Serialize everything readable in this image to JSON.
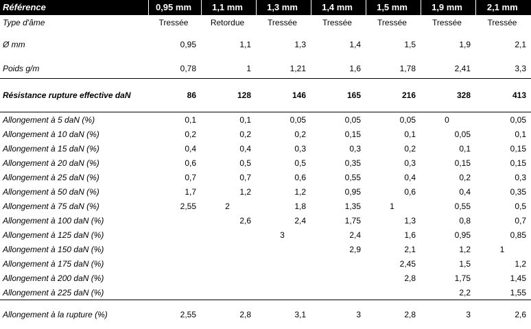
{
  "header": {
    "label": "Référence",
    "columns": [
      "0,95 mm",
      "1,1 mm",
      "1,3 mm",
      "1,4 mm",
      "1,5 mm",
      "1,9 mm",
      "2,1 mm"
    ]
  },
  "type_row": {
    "label": "Type d'âme",
    "values": [
      "Tressée",
      "Retordue",
      "Tressée",
      "Tressée",
      "Tressée",
      "Tressée",
      "Tressée"
    ]
  },
  "diameter_row": {
    "label": "Ø mm",
    "values": [
      "0,95",
      "1,1",
      "1,3",
      "1,4",
      "1,5",
      "1,9",
      "2,1"
    ]
  },
  "weight_row": {
    "label": "Poids g/m",
    "values": [
      "0,78",
      "1",
      "1,21",
      "1,6",
      "1,78",
      "2,41",
      "3,3"
    ]
  },
  "resistance_row": {
    "label": "Résistance rupture effective daN",
    "values": [
      "86",
      "128",
      "146",
      "165",
      "216",
      "328",
      "413"
    ]
  },
  "elongation_rows": [
    {
      "label": "Allongement à 5 daN (%)",
      "values": [
        "0,1",
        "0,1",
        "0,05",
        "0,05",
        "0,05",
        "0",
        "0,05"
      ]
    },
    {
      "label": "Allongement à 10 daN (%)",
      "values": [
        "0,2",
        "0,2",
        "0,2",
        "0,15",
        "0,1",
        "0,05",
        "0,1"
      ]
    },
    {
      "label": "Allongement à 15 daN (%)",
      "values": [
        "0,4",
        "0,4",
        "0,3",
        "0,3",
        "0,2",
        "0,1",
        "0,15"
      ]
    },
    {
      "label": "Allongement à 20 daN (%)",
      "values": [
        "0,6",
        "0,5",
        "0,5",
        "0,35",
        "0,3",
        "0,15",
        "0,15"
      ]
    },
    {
      "label": "Allongement à 25 daN (%)",
      "values": [
        "0,7",
        "0,7",
        "0,6",
        "0,55",
        "0,4",
        "0,2",
        "0,3"
      ]
    },
    {
      "label": "Allongement à 50 daN (%)",
      "values": [
        "1,7",
        "1,2",
        "1,2",
        "0,95",
        "0,6",
        "0,4",
        "0,35"
      ]
    },
    {
      "label": "Allongement à 75 daN (%)",
      "values": [
        "2,55",
        "2",
        "1,8",
        "1,35",
        "1",
        "0,55",
        "0,5"
      ]
    },
    {
      "label": "Allongement à 100 daN (%)",
      "values": [
        "",
        "2,6",
        "2,4",
        "1,75",
        "1,3",
        "0,8",
        "0,7"
      ]
    },
    {
      "label": "Allongement à 125 daN (%)",
      "values": [
        "",
        "",
        "3",
        "2,4",
        "1,6",
        "0,95",
        "0,85"
      ]
    },
    {
      "label": "Allongement à 150 daN (%)",
      "values": [
        "",
        "",
        "",
        "2,9",
        "2,1",
        "1,2",
        "1"
      ]
    },
    {
      "label": "Allongement à 175 daN (%)",
      "values": [
        "",
        "",
        "",
        "",
        "2,45",
        "1,5",
        "1,2"
      ]
    },
    {
      "label": "Allongement à 200 daN (%)",
      "values": [
        "",
        "",
        "",
        "",
        "2,8",
        "1,75",
        "1,45"
      ]
    },
    {
      "label": "Allongement à 225 daN (%)",
      "values": [
        "",
        "",
        "",
        "",
        "",
        "2,2",
        "1,55"
      ]
    }
  ],
  "rupture_row": {
    "label": "Allongement à la rupture (%)",
    "values": [
      "2,55",
      "2,8",
      "3,1",
      "3",
      "2,8",
      "3",
      "2,6"
    ]
  }
}
